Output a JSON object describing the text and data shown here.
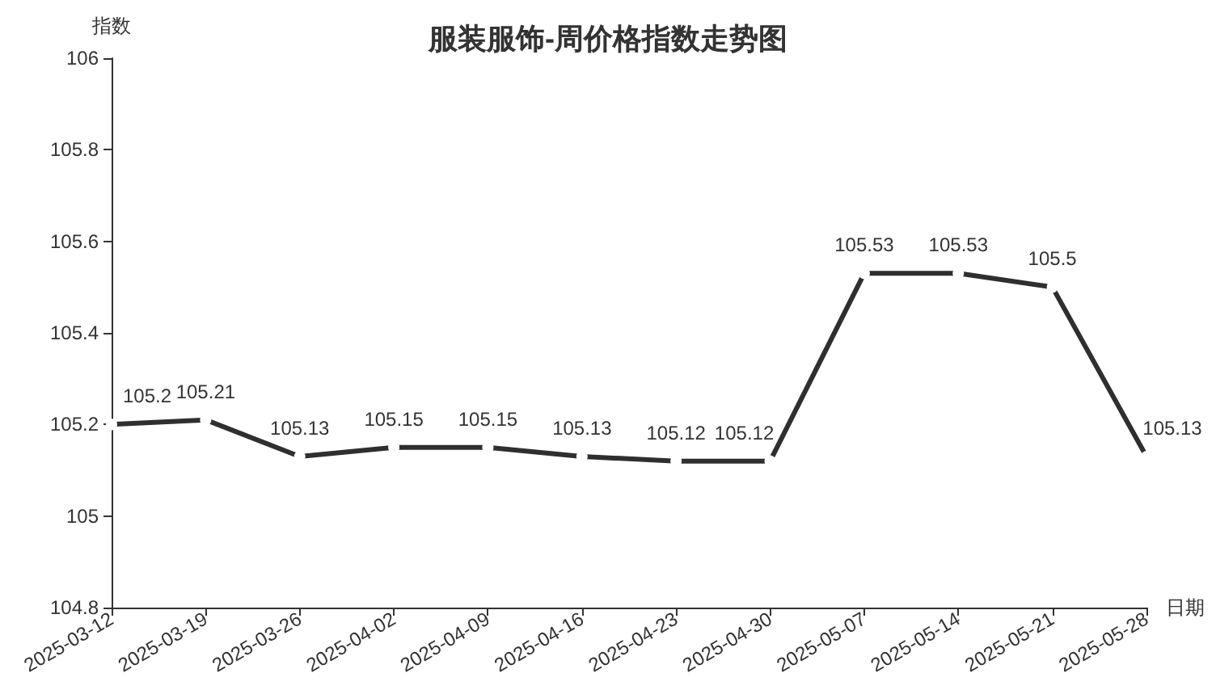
{
  "chart_data": {
    "type": "line",
    "title": "服装服饰-周价格指数走势图",
    "xlabel": "日期",
    "ylabel": "指数",
    "categories": [
      "2025-03-12",
      "2025-03-19",
      "2025-03-26",
      "2025-04-02",
      "2025-04-09",
      "2025-04-16",
      "2025-04-23",
      "2025-04-30",
      "2025-05-07",
      "2025-05-14",
      "2025-05-21",
      "2025-05-28"
    ],
    "values": [
      105.2,
      105.21,
      105.13,
      105.15,
      105.15,
      105.13,
      105.12,
      105.12,
      105.53,
      105.53,
      105.5,
      105.13
    ],
    "color": "#2f2f2f",
    "ylim": [
      104.8,
      106
    ],
    "yticks": [
      104.8,
      105,
      105.2,
      105.4,
      105.6,
      105.8,
      106
    ],
    "data_labels": true,
    "marker": "circle",
    "line_style": "solid"
  }
}
